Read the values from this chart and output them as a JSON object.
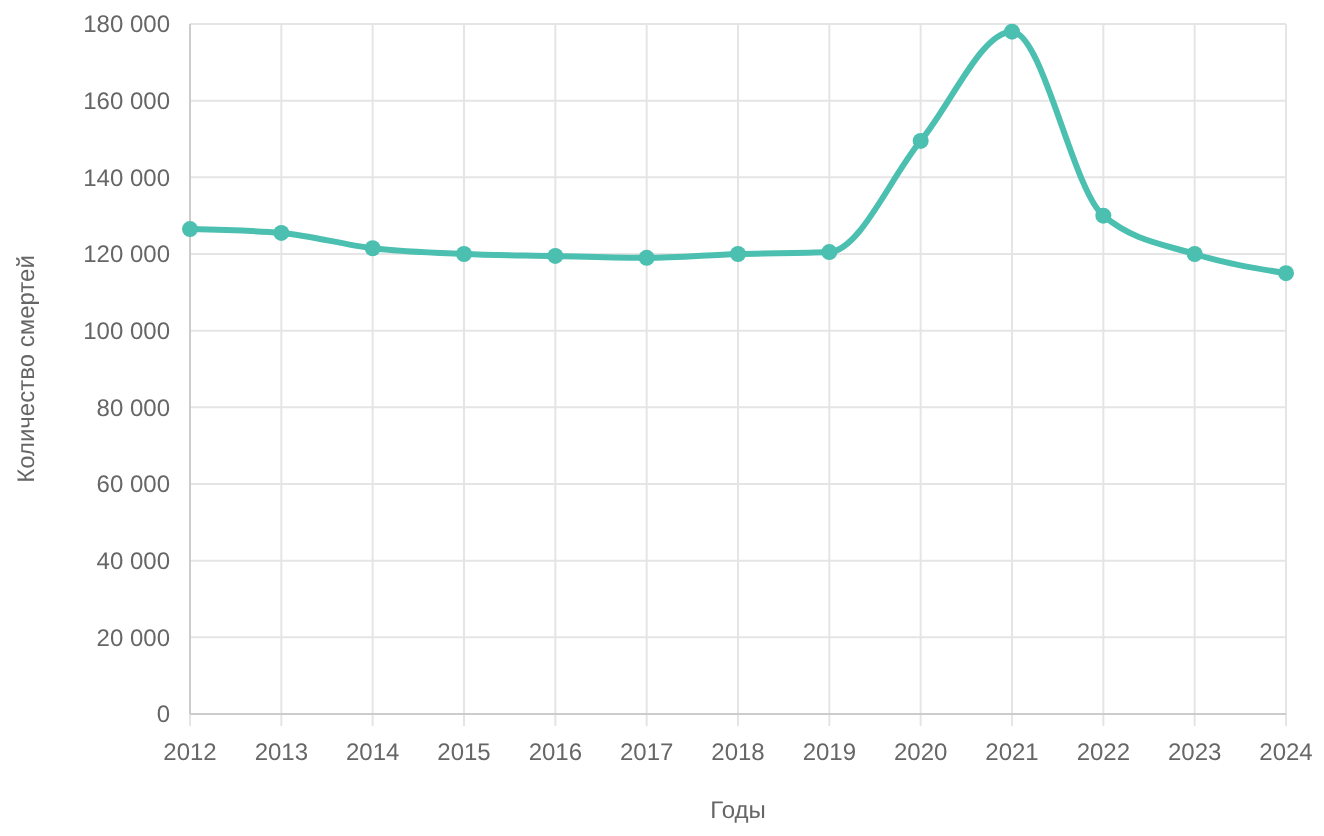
{
  "chart_data": {
    "type": "line",
    "xlabel": "Годы",
    "ylabel": "Количество смертей",
    "x": [
      2012,
      2013,
      2014,
      2015,
      2016,
      2017,
      2018,
      2019,
      2020,
      2021,
      2022,
      2023,
      2024
    ],
    "series": [
      {
        "color": "#4bbfb0",
        "values": [
          126500,
          125500,
          121500,
          120000,
          119500,
          119000,
          120000,
          120500,
          149500,
          178000,
          130000,
          120000,
          115000
        ]
      }
    ],
    "xlim": [
      2012,
      2024
    ],
    "xticks": [
      2012,
      2013,
      2014,
      2015,
      2016,
      2017,
      2018,
      2019,
      2020,
      2021,
      2022,
      2023,
      2024
    ],
    "ylim": [
      0,
      180000
    ],
    "yticks": [
      {
        "value": 0,
        "label": "0"
      },
      {
        "value": 20000,
        "label": "20 000"
      },
      {
        "value": 40000,
        "label": "40 000"
      },
      {
        "value": 60000,
        "label": "60 000"
      },
      {
        "value": 80000,
        "label": "80 000"
      },
      {
        "value": 100000,
        "label": "100 000"
      },
      {
        "value": 120000,
        "label": "120 000"
      },
      {
        "value": 140000,
        "label": "140 000"
      },
      {
        "value": 160000,
        "label": "160 000"
      },
      {
        "value": 180000,
        "label": "180 000"
      }
    ],
    "grid": true,
    "marker": "circle",
    "line_style": "solid"
  }
}
